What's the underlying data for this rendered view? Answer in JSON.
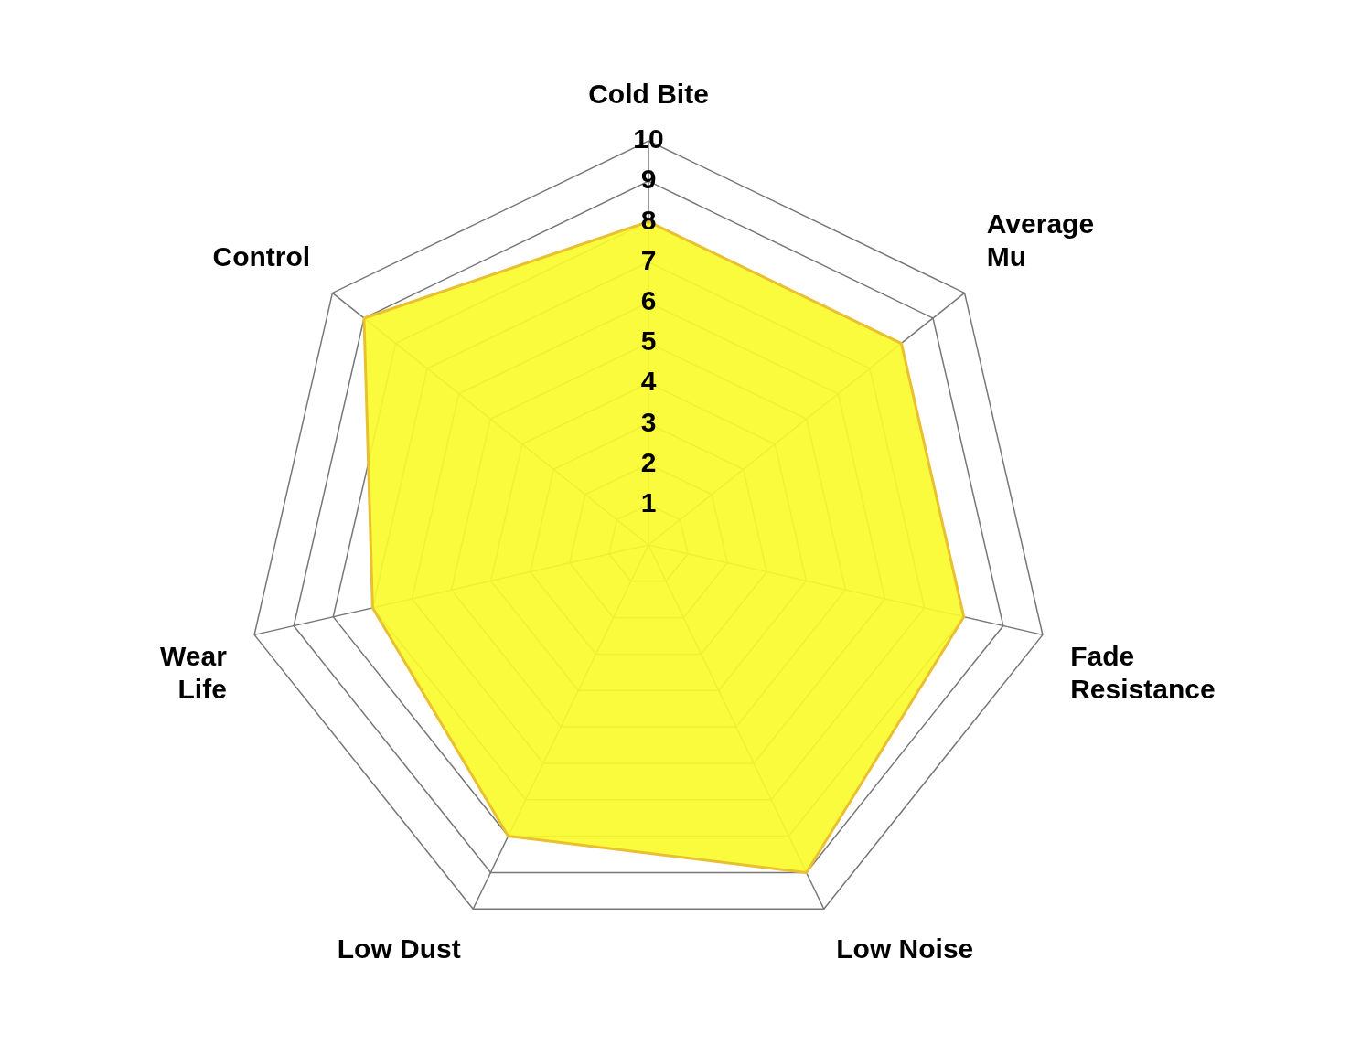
{
  "chart_data": {
    "type": "radar",
    "categories": [
      "Cold Bite",
      "Average\nMu",
      "Fade\nResistance",
      "Low Noise",
      "Low Dust",
      "Wear\nLife",
      "Control"
    ],
    "series": [
      {
        "color": "#fbfb2e",
        "values": [
          8,
          8,
          8,
          9,
          8,
          7,
          9
        ]
      }
    ],
    "ylim": [
      0,
      10
    ],
    "yticks": [
      1,
      2,
      3,
      4,
      5,
      6,
      7,
      8,
      9,
      10
    ],
    "grid": true,
    "marker": "none",
    "legend": false
  }
}
